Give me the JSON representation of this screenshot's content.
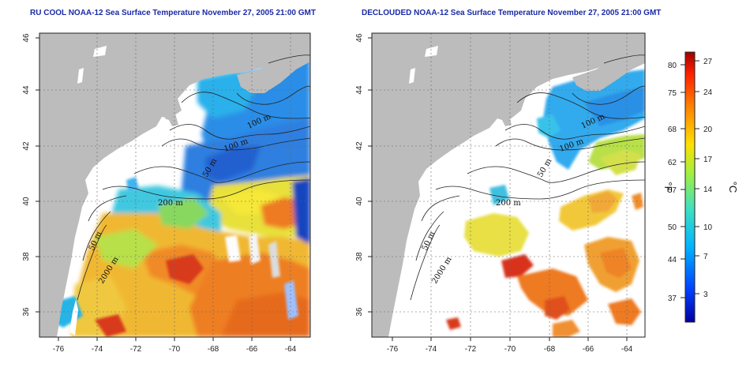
{
  "titles": {
    "left": "RU COOL NOAA-12 Sea Surface Temperature November 27, 2005 21:00 GMT",
    "right": "DECLOUDED NOAA-12 Sea Surface Temperature November 27, 2005 21:00 GMT"
  },
  "map_axes": {
    "lon_ticks": [
      "-76",
      "-74",
      "-72",
      "-70",
      "-68",
      "-66",
      "-64"
    ],
    "lat_ticks": [
      "46",
      "44",
      "42",
      "40",
      "38",
      "36"
    ]
  },
  "contour_labels": {
    "d100a": "100 m",
    "d100b": "100 m",
    "d50": "50 m",
    "d200": "200 m",
    "d50s": "50 m",
    "d2000": "2000 m"
  },
  "colorbar": {
    "fahrenheit_label": "°F",
    "celsius_label": "°C",
    "fahrenheit_ticks": [
      "80",
      "75",
      "68",
      "62",
      "57",
      "50",
      "44",
      "37"
    ],
    "celsius_ticks": [
      "27",
      "24",
      "20",
      "17",
      "14",
      "10",
      "7",
      "3"
    ]
  },
  "colors": {
    "land": "#bcbcbc",
    "title": "#1a2aa6",
    "cold": "#1e64d8",
    "cool": "#28b4e6",
    "mid": "#3cc8a0",
    "warm": "#f0e628",
    "orange": "#f07a1e",
    "hot": "#d22814"
  }
}
